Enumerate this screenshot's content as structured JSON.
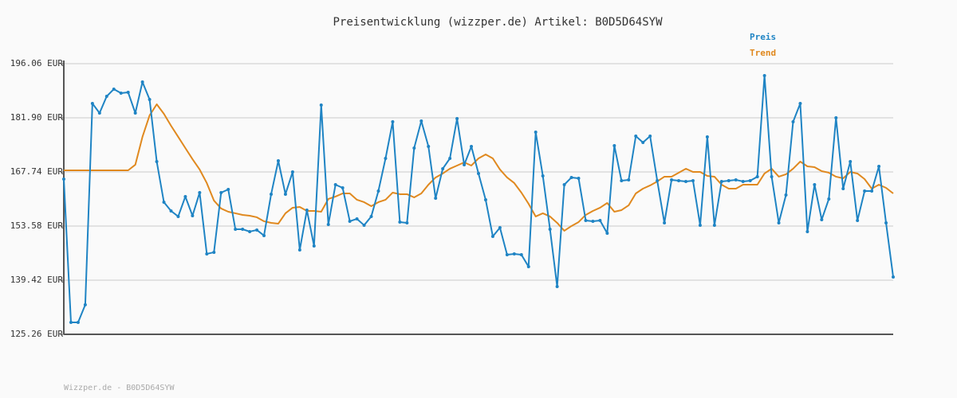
{
  "chart_data": {
    "type": "line",
    "title": "Preisentwicklung (wizzper.de) Artikel: B0D5D64SYW",
    "footer": "Wizzper.de - B0D5D64SYW",
    "legend": "top-right",
    "grid": true,
    "ylim": [
      125.26,
      196.06
    ],
    "yticks": [
      {
        "value": 125.26,
        "label": "125.26 EUR"
      },
      {
        "value": 139.42,
        "label": "139.42 EUR"
      },
      {
        "value": 153.58,
        "label": "153.58 EUR"
      },
      {
        "value": 167.74,
        "label": "167.74 EUR"
      },
      {
        "value": 181.9,
        "label": "181.90 EUR"
      },
      {
        "value": 196.06,
        "label": "196.06 EUR"
      }
    ],
    "series": [
      {
        "name": "Preis",
        "color": "#1f84c4",
        "markers": true,
        "values": [
          165.87,
          128.39,
          128.39,
          132.98,
          185.65,
          183.15,
          187.52,
          189.4,
          188.36,
          188.56,
          183.15,
          191.27,
          186.69,
          170.45,
          159.83,
          157.54,
          156.09,
          161.29,
          156.29,
          162.33,
          146.3,
          146.72,
          162.33,
          163.16,
          152.75,
          152.75,
          152.13,
          152.55,
          151.09,
          161.92,
          170.66,
          161.92,
          167.74,
          147.34,
          157.75,
          148.38,
          185.23,
          154.0,
          164.41,
          163.58,
          154.84,
          155.46,
          153.8,
          156.09,
          162.75,
          171.28,
          180.86,
          154.63,
          154.42,
          173.99,
          181.07,
          174.41,
          160.87,
          168.58,
          171.28,
          181.69,
          169.62,
          174.41,
          167.33,
          160.46,
          150.88,
          153.17,
          146.09,
          146.3,
          146.09,
          142.97,
          178.15,
          166.7,
          152.75,
          137.76,
          164.41,
          166.29,
          166.08,
          155.04,
          154.84,
          155.04,
          151.71,
          174.62,
          165.45,
          165.66,
          177.11,
          175.45,
          177.11,
          165.45,
          154.42,
          165.66,
          165.45,
          165.25,
          165.45,
          153.8,
          176.91,
          153.8,
          165.25,
          165.45,
          165.66,
          165.25,
          165.45,
          166.5,
          192.94,
          166.5,
          154.42,
          161.71,
          180.86,
          185.65,
          152.13,
          164.41,
          155.25,
          160.67,
          181.9,
          163.37,
          170.45,
          155.04,
          162.75,
          162.75,
          169.2,
          154.42,
          140.26
        ]
      },
      {
        "name": "Trend",
        "color": "#e0891f",
        "markers": false,
        "values": [
          168.16,
          168.16,
          168.16,
          168.16,
          168.16,
          168.16,
          168.16,
          168.16,
          168.16,
          168.16,
          169.62,
          176.91,
          182.53,
          185.44,
          182.94,
          179.82,
          176.91,
          173.99,
          171.08,
          168.37,
          164.83,
          160.25,
          158.17,
          157.33,
          156.92,
          156.5,
          156.29,
          155.88,
          154.84,
          154.42,
          154.21,
          156.92,
          158.38,
          158.58,
          157.54,
          157.54,
          157.33,
          160.67,
          161.29,
          162.12,
          162.12,
          160.46,
          159.83,
          158.79,
          159.83,
          160.46,
          162.33,
          161.92,
          161.92,
          161.08,
          162.12,
          164.41,
          166.29,
          167.33,
          168.58,
          169.41,
          170.24,
          169.41,
          171.28,
          172.33,
          171.28,
          168.37,
          166.29,
          164.83,
          162.33,
          159.42,
          156.09,
          156.92,
          156.09,
          154.42,
          152.34,
          153.59,
          154.63,
          156.5,
          157.54,
          158.38,
          159.62,
          157.33,
          157.75,
          159.0,
          162.12,
          163.37,
          164.21,
          165.25,
          166.5,
          166.5,
          167.54,
          168.58,
          167.74,
          167.74,
          166.7,
          166.5,
          164.41,
          163.37,
          163.37,
          164.41,
          164.41,
          164.41,
          167.33,
          168.58,
          166.5,
          167.12,
          168.58,
          170.45,
          169.2,
          168.99,
          167.95,
          167.54,
          166.5,
          166.08,
          167.74,
          167.33,
          165.87,
          163.37,
          164.41,
          163.58,
          162.12
        ]
      }
    ]
  }
}
